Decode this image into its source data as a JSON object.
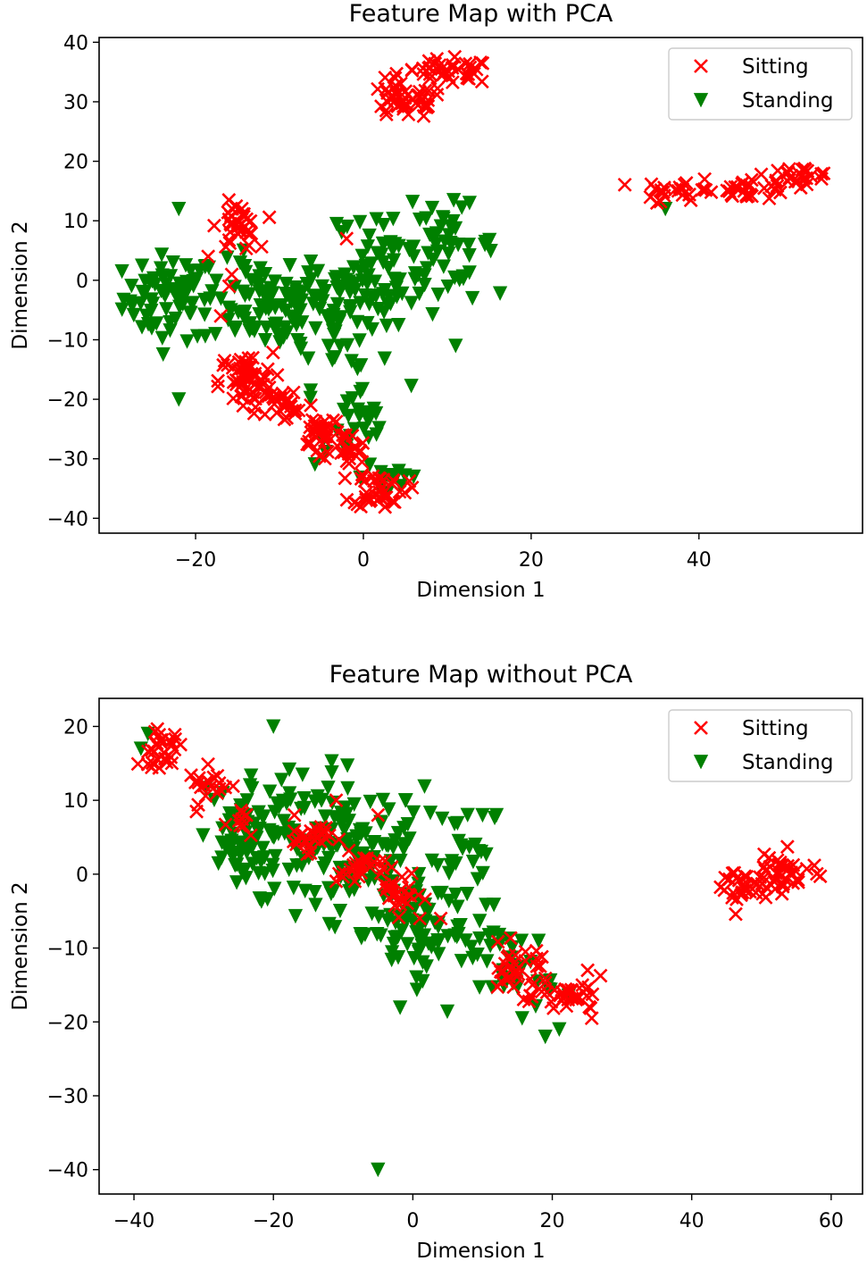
{
  "chart_data": [
    {
      "type": "scatter",
      "title": "Feature Map with PCA",
      "xlabel": "Dimension 1",
      "ylabel": "Dimension 2",
      "xlim": [
        -31.5,
        59.5
      ],
      "ylim": [
        -42.5,
        40.8
      ],
      "xticks": [
        -20,
        0,
        20,
        40
      ],
      "yticks": [
        -40,
        -30,
        -20,
        -10,
        0,
        10,
        20,
        30,
        40
      ],
      "legend_position": "top-right",
      "grid": false,
      "series": [
        {
          "name": "Sitting",
          "marker": "x",
          "color": "#ff0000",
          "clusters": [
            {
              "center": [
                5,
                30
              ],
              "spread": [
                3,
                1.8
              ],
              "count": 45
            },
            {
              "center": [
                10,
                35
              ],
              "spread": [
                3.5,
                1.3
              ],
              "count": 40
            },
            {
              "center": [
                38,
                15
              ],
              "spread": [
                3,
                1.3
              ],
              "count": 25
            },
            {
              "center": [
                46,
                15.5
              ],
              "spread": [
                3,
                1.2
              ],
              "count": 25
            },
            {
              "center": [
                52,
                17.5
              ],
              "spread": [
                2.5,
                1
              ],
              "count": 25
            },
            {
              "center": [
                -15,
                9
              ],
              "spread": [
                1.5,
                2.5
              ],
              "count": 35
            },
            {
              "center": [
                -14,
                -17
              ],
              "spread": [
                2,
                3
              ],
              "count": 60
            },
            {
              "center": [
                -9,
                -21
              ],
              "spread": [
                2,
                2
              ],
              "count": 25
            },
            {
              "center": [
                -5,
                -25
              ],
              "spread": [
                1.5,
                2
              ],
              "count": 30
            },
            {
              "center": [
                -2,
                -29
              ],
              "spread": [
                1.5,
                2
              ],
              "count": 25
            },
            {
              "center": [
                2,
                -35
              ],
              "spread": [
                2,
                2
              ],
              "count": 40
            }
          ],
          "points": [
            [
              -18.5,
              4
            ],
            [
              -16,
              -1
            ],
            [
              -17,
              -6
            ],
            [
              -2,
              7
            ],
            [
              35,
              13
            ]
          ]
        },
        {
          "name": "Standing",
          "marker": "triangle-down",
          "color": "#008000",
          "clusters": [
            {
              "center": [
                -23,
                -3
              ],
              "spread": [
                3.5,
                4.5
              ],
              "count": 70
            },
            {
              "center": [
                -12,
                -4
              ],
              "spread": [
                4.5,
                4.5
              ],
              "count": 80
            },
            {
              "center": [
                -3,
                -5
              ],
              "spread": [
                4,
                8
              ],
              "count": 70
            },
            {
              "center": [
                3,
                2
              ],
              "spread": [
                4,
                6
              ],
              "count": 60
            },
            {
              "center": [
                10,
                6
              ],
              "spread": [
                3.5,
                4
              ],
              "count": 40
            },
            {
              "center": [
                -1,
                -25
              ],
              "spread": [
                3,
                4
              ],
              "count": 25
            },
            {
              "center": [
                3,
                -33
              ],
              "spread": [
                2,
                3
              ],
              "count": 15
            }
          ],
          "points": [
            [
              -22,
              -20
            ],
            [
              -22,
              12
            ],
            [
              6,
              -33
            ],
            [
              13,
              -3
            ],
            [
              11,
              -11
            ],
            [
              36,
              12
            ]
          ]
        }
      ]
    },
    {
      "type": "scatter",
      "title": "Feature Map without PCA",
      "xlabel": "Dimension 1",
      "ylabel": "Dimension 2",
      "xlim": [
        -45,
        64.5
      ],
      "ylim": [
        -43.3,
        23.8
      ],
      "xticks": [
        -40,
        -20,
        0,
        20,
        40,
        60
      ],
      "yticks": [
        -40,
        -30,
        -20,
        -10,
        0,
        10,
        20
      ],
      "legend_position": "top-right",
      "grid": false,
      "series": [
        {
          "name": "Sitting",
          "marker": "x",
          "color": "#ff0000",
          "clusters": [
            {
              "center": [
                -36,
                17
              ],
              "spread": [
                2,
                1.5
              ],
              "count": 30
            },
            {
              "center": [
                -29,
                12
              ],
              "spread": [
                2,
                1.5
              ],
              "count": 20
            },
            {
              "center": [
                -24,
                7
              ],
              "spread": [
                1.5,
                1.5
              ],
              "count": 10
            },
            {
              "center": [
                -15,
                5
              ],
              "spread": [
                2,
                1.2
              ],
              "count": 25
            },
            {
              "center": [
                -7,
                0.5
              ],
              "spread": [
                2.5,
                1.5
              ],
              "count": 30
            },
            {
              "center": [
                -2,
                -3
              ],
              "spread": [
                2,
                1.5
              ],
              "count": 20
            },
            {
              "center": [
                15,
                -13
              ],
              "spread": [
                3,
                2
              ],
              "count": 35
            },
            {
              "center": [
                23,
                -16.5
              ],
              "spread": [
                3,
                1.5
              ],
              "count": 35
            },
            {
              "center": [
                47,
                -2
              ],
              "spread": [
                2.5,
                2
              ],
              "count": 30
            },
            {
              "center": [
                53,
                0
              ],
              "spread": [
                3,
                1.8
              ],
              "count": 40
            }
          ],
          "points": [
            [
              -11,
              10
            ],
            [
              1,
              -6
            ],
            [
              4,
              -6
            ],
            [
              -5,
              8
            ],
            [
              -17,
              8
            ]
          ]
        },
        {
          "name": "Standing",
          "marker": "triangle-down",
          "color": "#008000",
          "clusters": [
            {
              "center": [
                -25,
                4
              ],
              "spread": [
                3.5,
                5
              ],
              "count": 60
            },
            {
              "center": [
                -15,
                5
              ],
              "spread": [
                5,
                6
              ],
              "count": 90
            },
            {
              "center": [
                -5,
                2
              ],
              "spread": [
                5,
                6
              ],
              "count": 80
            },
            {
              "center": [
                0,
                -8
              ],
              "spread": [
                5,
                4
              ],
              "count": 60
            },
            {
              "center": [
                8,
                2
              ],
              "spread": [
                4,
                5
              ],
              "count": 30
            },
            {
              "center": [
                14,
                -13
              ],
              "spread": [
                4,
                4
              ],
              "count": 40
            }
          ],
          "points": [
            [
              -5,
              -40
            ],
            [
              19,
              -22
            ],
            [
              21,
              -21
            ],
            [
              10,
              8
            ],
            [
              12,
              8
            ],
            [
              -38,
              19
            ],
            [
              -39,
              17
            ],
            [
              -20,
              20
            ]
          ]
        }
      ]
    }
  ]
}
